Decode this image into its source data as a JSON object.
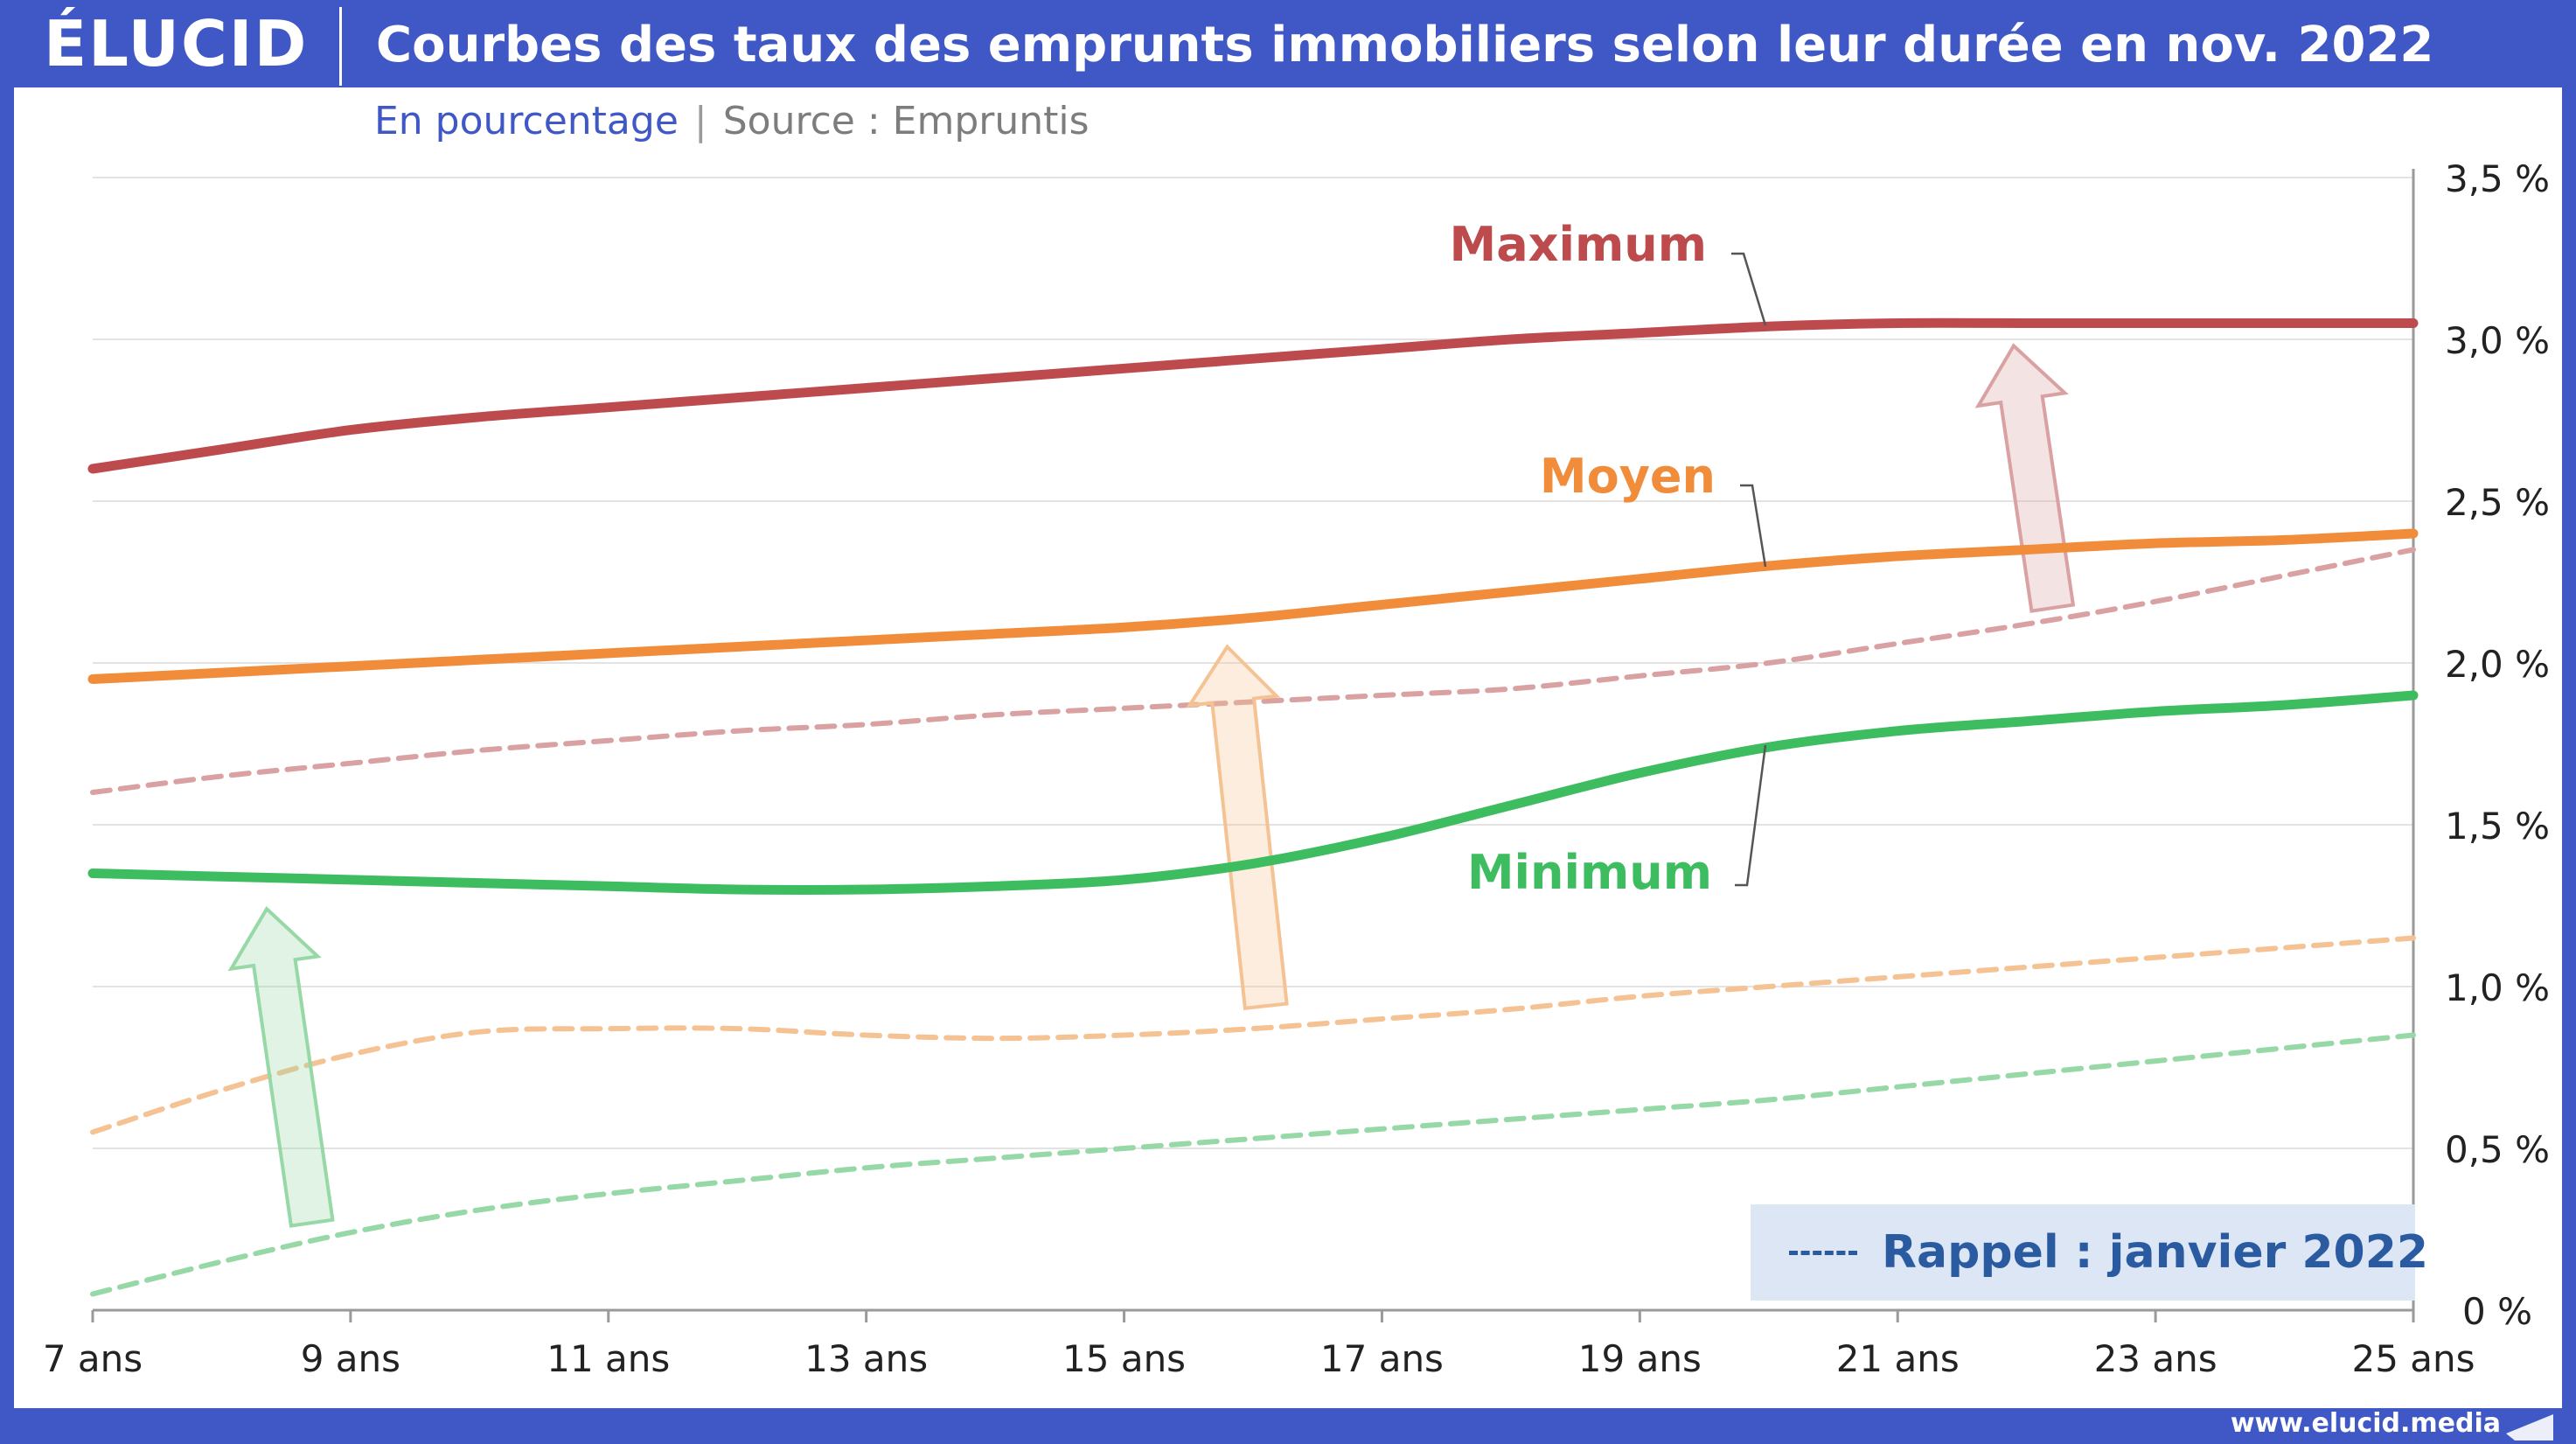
{
  "header": {
    "logo": "ÉLUCID",
    "title": "Courbes des taux des emprunts immobiliers selon leur durée en nov. 2022"
  },
  "subtitle": {
    "unit": "En pourcentage",
    "separator": "|",
    "source": "Source : Empruntis"
  },
  "footer": {
    "url": "www.elucid.media"
  },
  "legend": {
    "dash_symbol": "---",
    "label": "Rappel : janvier 2022"
  },
  "colors": {
    "max": "#bd4b4d",
    "mean": "#f08c3a",
    "min": "#3dbd5f",
    "max_ref": "#d9a1a2",
    "mean_ref": "#f5c393",
    "min_ref": "#97d8a7",
    "brand": "#3f58c6",
    "legend_text": "#2a5ba0"
  },
  "chart_data": {
    "type": "line",
    "title": "Courbes des taux des emprunts immobiliers selon leur durée en nov. 2022",
    "ylabel": "En pourcentage",
    "xlim": [
      7,
      25
    ],
    "ylim": [
      0,
      3.5
    ],
    "x_ticks": [
      7,
      9,
      11,
      13,
      15,
      17,
      19,
      21,
      23,
      25
    ],
    "x_tick_labels": [
      "7 ans",
      "9 ans",
      "11 ans",
      "13 ans",
      "15 ans",
      "17 ans",
      "19 ans",
      "21 ans",
      "23 ans",
      "25 ans"
    ],
    "y_ticks": [
      0,
      0.5,
      1.0,
      1.5,
      2.0,
      2.5,
      3.0,
      3.5
    ],
    "y_tick_labels": [
      "0 %",
      "0,5 %",
      "1,0 %",
      "1,5 %",
      "2,0 %",
      "2,5 %",
      "3,0 %",
      "3,5 %"
    ],
    "y_axis_position": "right",
    "grid": true,
    "x": [
      7,
      8,
      9,
      10,
      11,
      12,
      13,
      14,
      15,
      16,
      17,
      18,
      19,
      20,
      21,
      22,
      23,
      24,
      25
    ],
    "series": [
      {
        "name": "Maximum",
        "key": "max",
        "period": "nov. 2022",
        "style": "solid",
        "values": [
          2.6,
          2.66,
          2.72,
          2.76,
          2.79,
          2.82,
          2.85,
          2.88,
          2.91,
          2.94,
          2.97,
          3.0,
          3.02,
          3.04,
          3.05,
          3.05,
          3.05,
          3.05,
          3.05
        ]
      },
      {
        "name": "Moyen",
        "key": "mean",
        "period": "nov. 2022",
        "style": "solid",
        "values": [
          1.95,
          1.97,
          1.99,
          2.01,
          2.03,
          2.05,
          2.07,
          2.09,
          2.11,
          2.14,
          2.18,
          2.22,
          2.26,
          2.3,
          2.33,
          2.35,
          2.37,
          2.38,
          2.4
        ]
      },
      {
        "name": "Minimum",
        "key": "min",
        "period": "nov. 2022",
        "style": "solid",
        "values": [
          1.35,
          1.34,
          1.33,
          1.32,
          1.31,
          1.3,
          1.3,
          1.31,
          1.33,
          1.38,
          1.46,
          1.56,
          1.66,
          1.74,
          1.79,
          1.82,
          1.85,
          1.87,
          1.9
        ]
      },
      {
        "key": "max_ref",
        "period": "janvier 2022",
        "style": "dashed",
        "values": [
          1.6,
          1.65,
          1.69,
          1.73,
          1.76,
          1.79,
          1.81,
          1.84,
          1.86,
          1.88,
          1.9,
          1.92,
          1.96,
          2.0,
          2.06,
          2.12,
          2.19,
          2.27,
          2.35
        ]
      },
      {
        "key": "mean_ref",
        "period": "janvier 2022",
        "style": "dashed",
        "values": [
          0.55,
          0.68,
          0.79,
          0.86,
          0.87,
          0.87,
          0.85,
          0.84,
          0.85,
          0.87,
          0.9,
          0.93,
          0.97,
          1.0,
          1.03,
          1.06,
          1.09,
          1.12,
          1.15
        ]
      },
      {
        "key": "min_ref",
        "period": "janvier 2022",
        "style": "dashed",
        "values": [
          0.05,
          0.15,
          0.24,
          0.31,
          0.36,
          0.4,
          0.44,
          0.47,
          0.5,
          0.53,
          0.56,
          0.59,
          0.62,
          0.65,
          0.69,
          0.73,
          0.77,
          0.81,
          0.85
        ]
      }
    ],
    "annotations": [
      {
        "key": "max",
        "text": "Maximum"
      },
      {
        "key": "mean",
        "text": "Moyen"
      },
      {
        "key": "min",
        "text": "Minimum"
      }
    ],
    "arrows": [
      {
        "key": "min",
        "from": [
          8.7,
          0.27
        ],
        "to": [
          8.35,
          1.24
        ]
      },
      {
        "key": "mean",
        "from": [
          16.1,
          0.94
        ],
        "to": [
          15.8,
          2.05
        ]
      },
      {
        "key": "max",
        "from": [
          22.2,
          2.17
        ],
        "to": [
          21.9,
          2.98
        ]
      }
    ]
  }
}
